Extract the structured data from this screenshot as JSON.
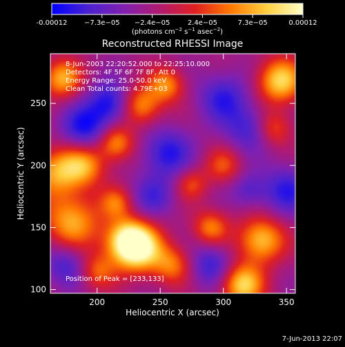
{
  "chart_data": {
    "type": "heatmap",
    "title": "Reconstructed RHESSI Image",
    "xlabel": "Heliocentric X (arcsec)",
    "ylabel": "Heliocentric Y (arcsec)",
    "xlim": [
      163,
      357
    ],
    "ylim": [
      97,
      290
    ],
    "xticks": [
      200,
      250,
      300,
      350
    ],
    "yticks": [
      100,
      150,
      200,
      250
    ],
    "colorbar": {
      "label_html": "(photons cm<tspan baseline-shift=\"super\" font-size=\"7\">−2</tspan> s<tspan baseline-shift=\"super\" font-size=\"7\">−1</tspan> asec<tspan baseline-shift=\"super\" font-size=\"7\">−2</tspan>)",
      "min": -0.00012,
      "max": 0.00012,
      "tick_labels": [
        "-0.00012",
        "−7.3e−05",
        "−2.4e−05",
        "2.4e−05",
        "7.3e−05",
        "0.00012"
      ],
      "stops": [
        "#0000ff",
        "#4a22d0",
        "#8020b0",
        "#b01a70",
        "#e02020",
        "#ff7a00",
        "#ffd040",
        "#ffffc8"
      ]
    },
    "annotations": {
      "time_range": "8-Jun-2003 22:20:52.000 to 22:25:10.000",
      "detectors": "Detectors: 4F 5F 6F 7F 8F, Att 0",
      "energy": "Energy Range: 25.0-50.0 keV",
      "clean": "Clean    Total counts: 4.79E+03",
      "peak": "Position of Peak = [233,133]"
    },
    "blobs": [
      {
        "x": 233,
        "y": 133,
        "a": 1.0,
        "r": 14
      },
      {
        "x": 223,
        "y": 140,
        "a": 0.8,
        "r": 12
      },
      {
        "x": 180,
        "y": 155,
        "a": 0.75,
        "r": 16
      },
      {
        "x": 168,
        "y": 195,
        "a": 0.7,
        "r": 14
      },
      {
        "x": 190,
        "y": 200,
        "a": 0.65,
        "r": 12
      },
      {
        "x": 215,
        "y": 218,
        "a": 0.7,
        "r": 10
      },
      {
        "x": 235,
        "y": 248,
        "a": 0.7,
        "r": 11
      },
      {
        "x": 255,
        "y": 265,
        "a": 0.65,
        "r": 10
      },
      {
        "x": 172,
        "y": 270,
        "a": 0.75,
        "r": 11
      },
      {
        "x": 345,
        "y": 268,
        "a": 0.9,
        "r": 13
      },
      {
        "x": 340,
        "y": 230,
        "a": 0.5,
        "r": 10
      },
      {
        "x": 330,
        "y": 140,
        "a": 0.85,
        "r": 13
      },
      {
        "x": 315,
        "y": 104,
        "a": 0.9,
        "r": 12
      },
      {
        "x": 290,
        "y": 150,
        "a": 0.6,
        "r": 10
      },
      {
        "x": 275,
        "y": 185,
        "a": 0.45,
        "r": 9
      },
      {
        "x": 200,
        "y": 115,
        "a": 0.5,
        "r": 10
      },
      {
        "x": 260,
        "y": 120,
        "a": 0.55,
        "r": 11
      },
      {
        "x": 300,
        "y": 200,
        "a": 0.45,
        "r": 10
      },
      {
        "x": 215,
        "y": 170,
        "a": 0.5,
        "r": 9
      },
      {
        "x": 190,
        "y": 230,
        "a": -0.6,
        "r": 13
      },
      {
        "x": 210,
        "y": 250,
        "a": -0.6,
        "r": 12
      },
      {
        "x": 255,
        "y": 210,
        "a": -0.55,
        "r": 14
      },
      {
        "x": 300,
        "y": 255,
        "a": -0.5,
        "r": 14
      },
      {
        "x": 320,
        "y": 230,
        "a": -0.45,
        "r": 13
      },
      {
        "x": 290,
        "y": 120,
        "a": -0.5,
        "r": 12
      },
      {
        "x": 350,
        "y": 180,
        "a": -0.5,
        "r": 14
      },
      {
        "x": 245,
        "y": 175,
        "a": -0.4,
        "r": 12
      },
      {
        "x": 175,
        "y": 120,
        "a": -0.45,
        "r": 12
      },
      {
        "x": 320,
        "y": 180,
        "a": -0.35,
        "r": 10
      }
    ]
  },
  "footer": {
    "timestamp": "7-Jun-2013 22:07"
  }
}
